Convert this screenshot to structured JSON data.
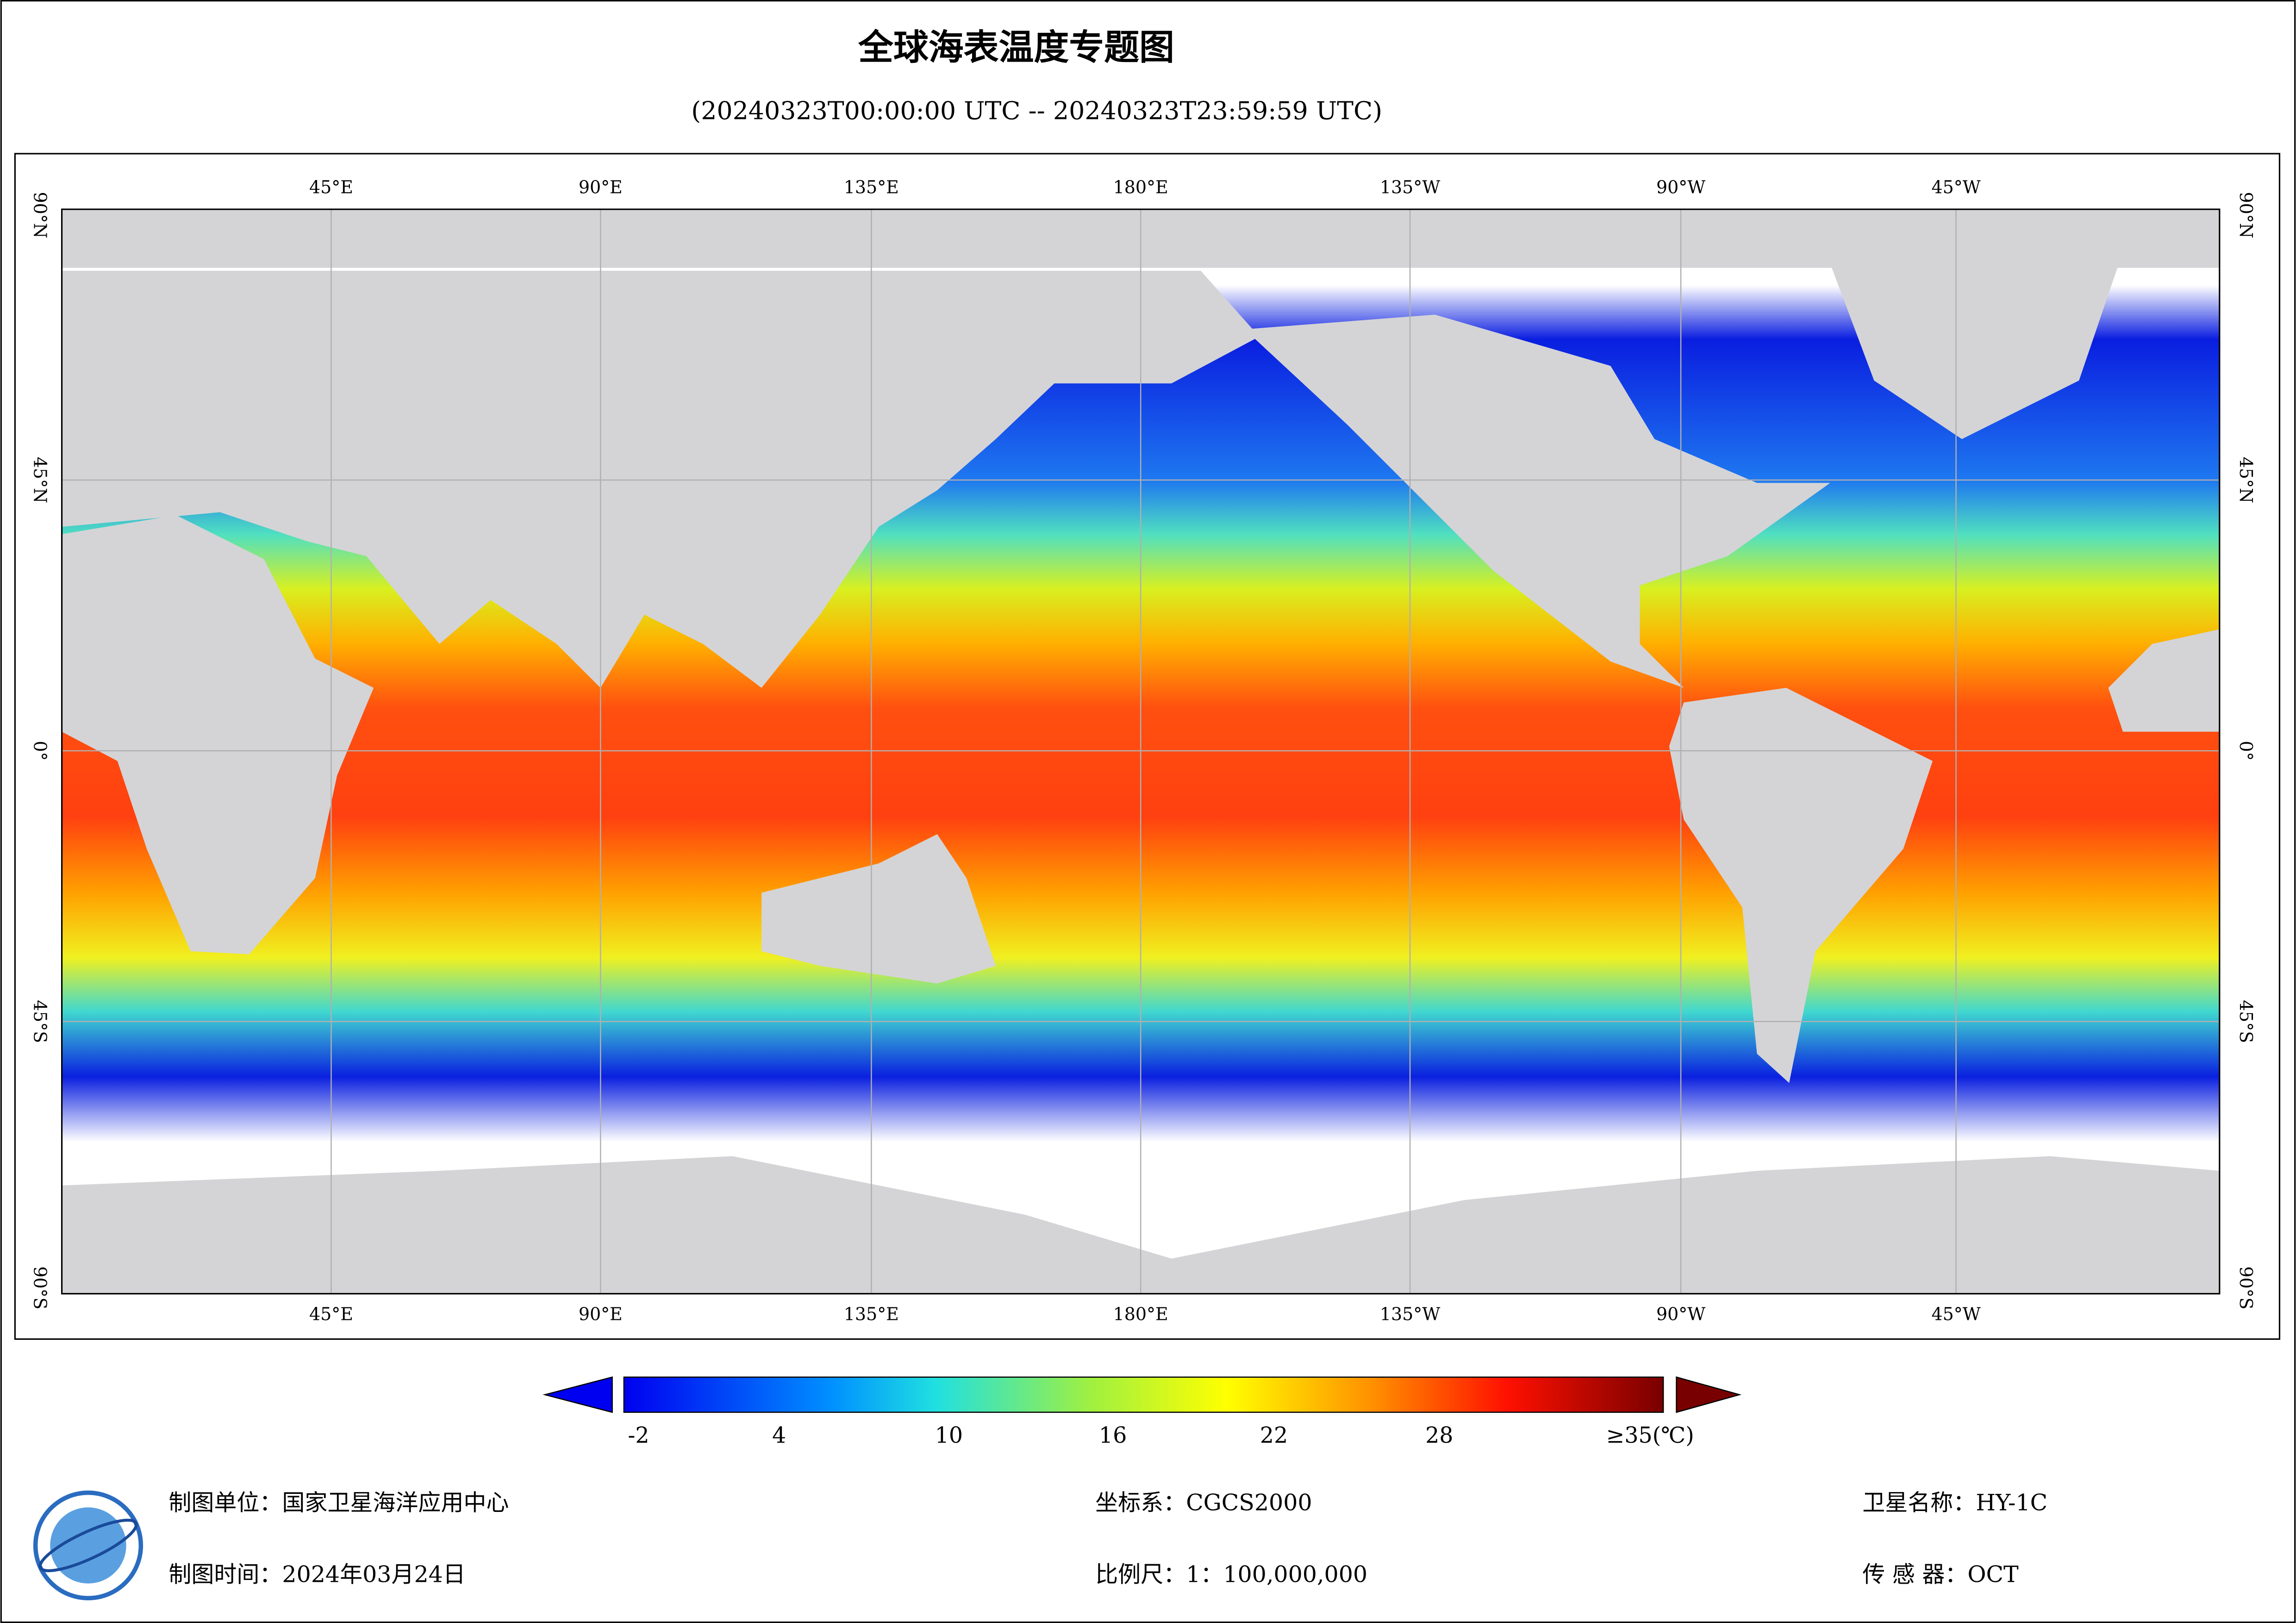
{
  "header": {
    "title": "全球海表温度专题图",
    "subtitle": "(20240323T00:00:00 UTC -- 20240323T23:59:59 UTC)"
  },
  "map": {
    "longitude_labels": [
      "45°E",
      "90°E",
      "135°E",
      "180°E",
      "135°W",
      "90°W",
      "45°W"
    ],
    "latitude_labels": [
      "90°N",
      "45°N",
      "0°",
      "45°S",
      "90°S"
    ]
  },
  "colorbar": {
    "labels": [
      "-2",
      "4",
      "10",
      "16",
      "22",
      "28",
      "≥35(℃)"
    ]
  },
  "footer": {
    "unit": "制图单位：国家卫星海洋应用中心",
    "time": "制图时间：2024年03月24日",
    "coords": "坐标系：CGCS2000",
    "scale": "比例尺：1：100,000,000",
    "satellite": "卫星名称：HY-1C",
    "sensor": "传 感 器：OCT"
  }
}
